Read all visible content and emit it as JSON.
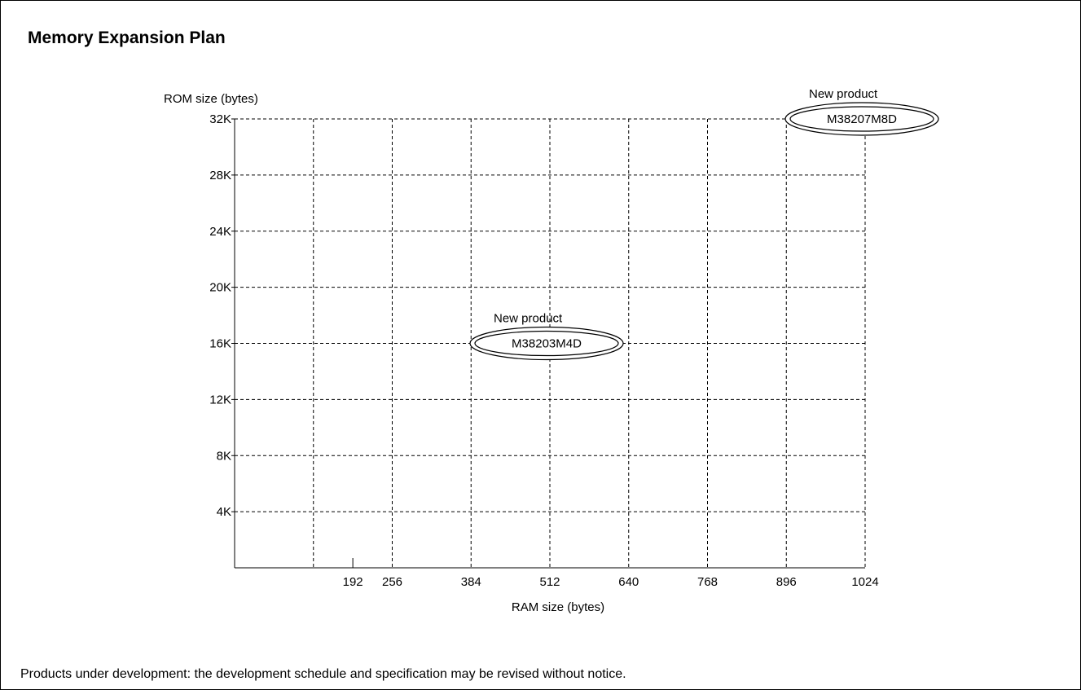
{
  "title": "Memory Expansion Plan",
  "footnote": "Products under development: the development schedule and specification may be revised without notice.",
  "chart_data": {
    "type": "scatter",
    "ylabel": "ROM size (bytes)",
    "xlabel": "RAM size (bytes)",
    "xlim": [
      0,
      1024
    ],
    "ylim": [
      0,
      32
    ],
    "grid": true,
    "x_ticks": [
      {
        "value": 128,
        "label": ""
      },
      {
        "value": 192,
        "label": "192"
      },
      {
        "value": 256,
        "label": "256"
      },
      {
        "value": 384,
        "label": "384"
      },
      {
        "value": 512,
        "label": "512"
      },
      {
        "value": 640,
        "label": "640"
      },
      {
        "value": 768,
        "label": "768"
      },
      {
        "value": 896,
        "label": "896"
      },
      {
        "value": 1024,
        "label": "1024"
      }
    ],
    "x_gridlines": [
      128,
      256,
      384,
      512,
      640,
      768,
      896,
      1024
    ],
    "y_ticks": [
      {
        "value": 4,
        "label": "4K"
      },
      {
        "value": 8,
        "label": "8K"
      },
      {
        "value": 12,
        "label": "12K"
      },
      {
        "value": 16,
        "label": "16K"
      },
      {
        "value": 20,
        "label": "20K"
      },
      {
        "value": 24,
        "label": "24K"
      },
      {
        "value": 28,
        "label": "28K"
      },
      {
        "value": 32,
        "label": "32K"
      }
    ],
    "points": [
      {
        "x": 512,
        "y": 16,
        "label": "M38203M4D",
        "annotation": "New product"
      },
      {
        "x": 1024,
        "y": 32,
        "label": "M38207M8D",
        "annotation": "New product"
      }
    ]
  }
}
